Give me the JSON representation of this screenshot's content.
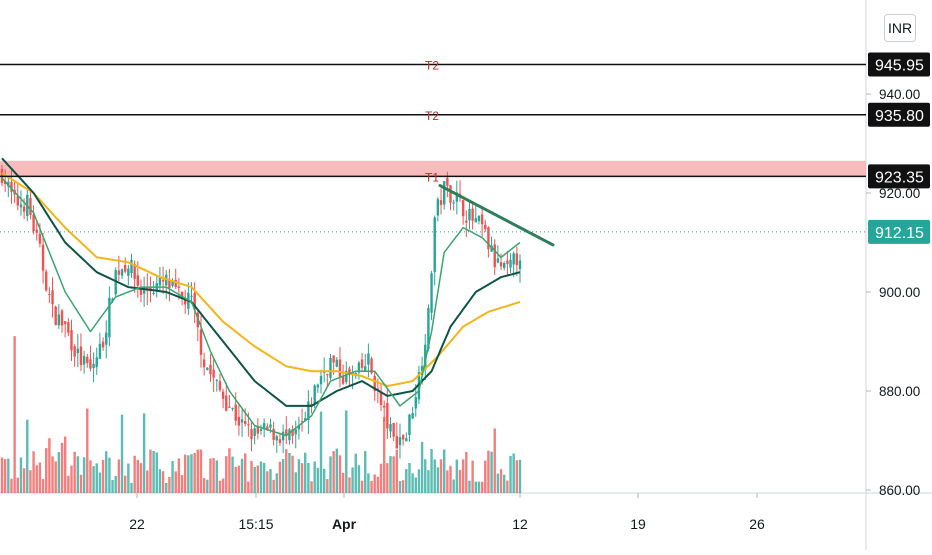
{
  "currency_badge": "INR",
  "colors": {
    "up_candle": "#26a69a",
    "down_candle": "#ef5350",
    "ema_fast": "#3aa66f",
    "ema_mid": "#0f5448",
    "ema_slow": "#f2b619",
    "trendline": "#2e7d5b",
    "zone_fill": "#f7b5b5",
    "level_label": "#c62828",
    "last_price_badge": "#26a69a",
    "level_badge": "#111111"
  },
  "chart_data": {
    "type": "candlestick",
    "y_axis": {
      "ylim": [
        859,
        960
      ],
      "ticks": [
        {
          "value": 940,
          "label": "940.00"
        },
        {
          "value": 920,
          "label": "920.00"
        },
        {
          "value": 900,
          "label": "900.00"
        },
        {
          "value": 880,
          "label": "880.00"
        },
        {
          "value": 860,
          "label": "860.00"
        }
      ]
    },
    "x_axis": {
      "ticks": [
        {
          "label": "22",
          "bold": false
        },
        {
          "label": "15:15",
          "bold": false
        },
        {
          "label": "Apr",
          "bold": true
        },
        {
          "label": "12",
          "bold": false
        },
        {
          "label": "19",
          "bold": false
        },
        {
          "label": "26",
          "bold": false
        }
      ]
    },
    "levels": [
      {
        "label": "T2",
        "value": 945.95,
        "badge": "945.95"
      },
      {
        "label": "T2",
        "value": 935.8,
        "badge": "935.80"
      },
      {
        "label": "T1",
        "value": 923.35,
        "badge": "923.35"
      }
    ],
    "zone": {
      "from": 923.35,
      "to": 926.5
    },
    "last_price": {
      "value": 912.15,
      "badge": "912.15"
    },
    "trendline": {
      "from_value": 921.5,
      "to_value": 909.5
    },
    "price_anchors": [
      [
        0,
        924
      ],
      [
        4,
        918
      ],
      [
        8,
        918
      ],
      [
        12,
        908
      ],
      [
        16,
        896
      ],
      [
        20,
        893
      ],
      [
        24,
        887
      ],
      [
        28,
        884
      ],
      [
        32,
        890
      ],
      [
        36,
        904
      ],
      [
        40,
        906
      ],
      [
        44,
        900
      ],
      [
        48,
        901
      ],
      [
        52,
        902
      ],
      [
        56,
        899
      ],
      [
        60,
        898
      ],
      [
        64,
        886
      ],
      [
        68,
        881
      ],
      [
        72,
        877
      ],
      [
        76,
        873
      ],
      [
        80,
        871
      ],
      [
        84,
        872
      ],
      [
        88,
        871
      ],
      [
        92,
        870
      ],
      [
        96,
        874
      ],
      [
        100,
        882
      ],
      [
        104,
        886
      ],
      [
        108,
        883
      ],
      [
        112,
        883
      ],
      [
        116,
        886
      ],
      [
        120,
        877
      ],
      [
        124,
        870
      ],
      [
        128,
        871
      ],
      [
        132,
        883
      ],
      [
        135,
        895
      ],
      [
        137,
        915
      ],
      [
        140,
        921
      ],
      [
        144,
        919
      ],
      [
        148,
        915
      ],
      [
        152,
        913
      ],
      [
        156,
        906
      ],
      [
        160,
        904
      ],
      [
        164,
        908
      ]
    ],
    "ema_fast_anchors": [
      [
        0,
        923
      ],
      [
        10,
        916
      ],
      [
        20,
        900
      ],
      [
        28,
        892
      ],
      [
        36,
        899
      ],
      [
        44,
        901
      ],
      [
        52,
        901
      ],
      [
        60,
        898
      ],
      [
        66,
        888
      ],
      [
        72,
        880
      ],
      [
        80,
        873
      ],
      [
        90,
        871
      ],
      [
        98,
        875
      ],
      [
        104,
        882
      ],
      [
        112,
        884
      ],
      [
        118,
        884
      ],
      [
        126,
        877
      ],
      [
        132,
        880
      ],
      [
        136,
        892
      ],
      [
        140,
        908
      ],
      [
        146,
        913
      ],
      [
        152,
        911
      ],
      [
        158,
        907
      ],
      [
        164,
        910
      ]
    ],
    "ema_mid_anchors": [
      [
        0,
        927
      ],
      [
        10,
        920
      ],
      [
        20,
        910
      ],
      [
        30,
        904
      ],
      [
        40,
        901
      ],
      [
        52,
        900
      ],
      [
        60,
        898
      ],
      [
        70,
        890
      ],
      [
        80,
        882
      ],
      [
        90,
        877
      ],
      [
        98,
        877
      ],
      [
        106,
        880
      ],
      [
        114,
        882
      ],
      [
        122,
        879
      ],
      [
        130,
        880
      ],
      [
        136,
        884
      ],
      [
        142,
        893
      ],
      [
        150,
        900
      ],
      [
        158,
        903
      ],
      [
        164,
        904
      ]
    ],
    "ema_slow_anchors": [
      [
        0,
        924
      ],
      [
        10,
        920
      ],
      [
        20,
        913
      ],
      [
        30,
        907
      ],
      [
        40,
        906
      ],
      [
        50,
        903
      ],
      [
        60,
        901
      ],
      [
        70,
        894
      ],
      [
        80,
        889
      ],
      [
        90,
        885
      ],
      [
        98,
        884
      ],
      [
        106,
        884
      ],
      [
        114,
        883
      ],
      [
        122,
        881
      ],
      [
        130,
        882
      ],
      [
        138,
        887
      ],
      [
        146,
        893
      ],
      [
        154,
        896
      ],
      [
        164,
        898
      ]
    ],
    "volume_note_max_bar": 1.0
  }
}
